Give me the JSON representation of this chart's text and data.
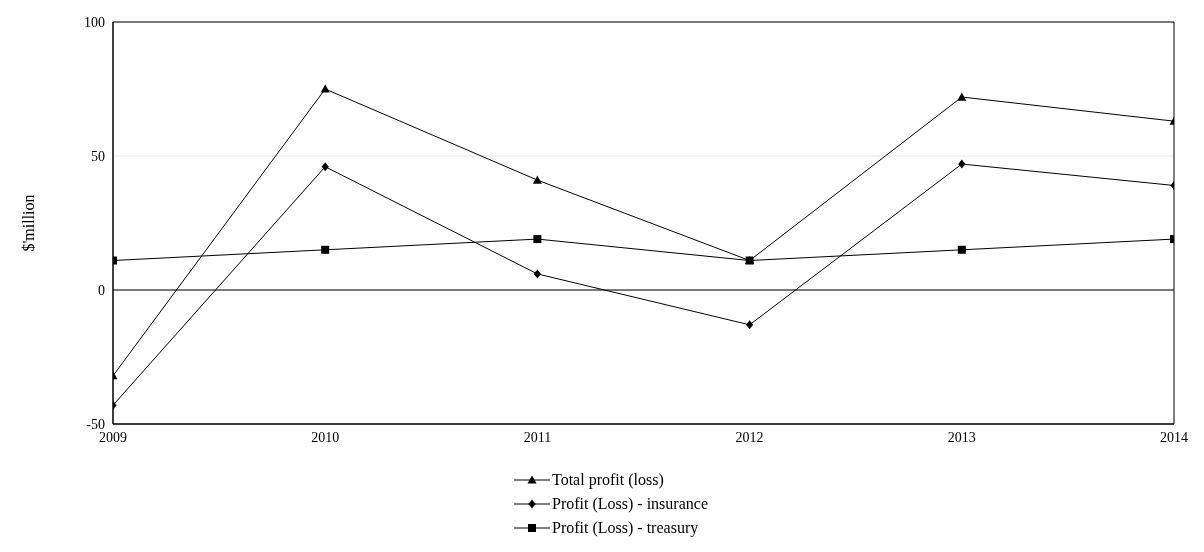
{
  "chart_data": {
    "type": "line",
    "ylabel": "$'million",
    "x": [
      2009,
      2010,
      2011,
      2012,
      2013,
      2014
    ],
    "xlim": [
      2009,
      2014
    ],
    "xticks": [
      2009,
      2010,
      2011,
      2012,
      2013,
      2014
    ],
    "ylim": [
      -50,
      100
    ],
    "yticks": [
      -50,
      0,
      50,
      100
    ],
    "grid": "y",
    "legend": "bottom",
    "line_style": "solid",
    "ref_lines": [
      {
        "axis": "y",
        "value": 0,
        "color": "#000000"
      }
    ],
    "series": [
      {
        "name": "Total profit (loss)",
        "color": "#000000",
        "marker": "triangle",
        "values": [
          -32,
          75,
          41,
          11,
          72,
          63
        ]
      },
      {
        "name": "Profit (Loss) - insurance",
        "color": "#000000",
        "marker": "diamond",
        "values": [
          -43,
          46,
          6,
          -13,
          47,
          39
        ]
      },
      {
        "name": "Profit (Loss) - treasury",
        "color": "#000000",
        "marker": "square",
        "values": [
          11,
          15,
          19,
          11,
          15,
          19
        ]
      }
    ]
  }
}
